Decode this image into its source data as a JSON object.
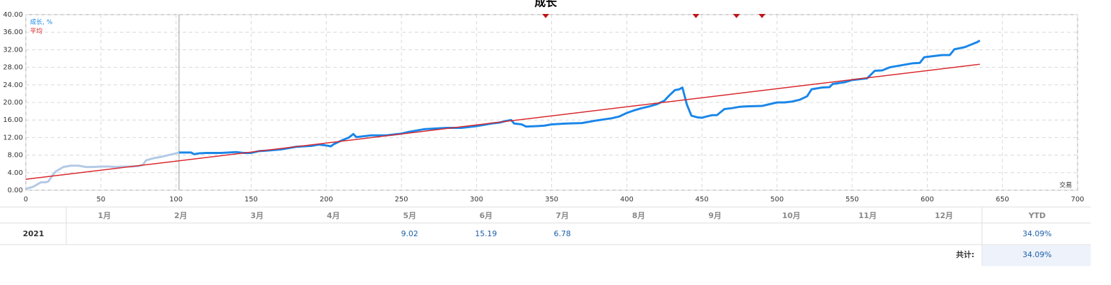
{
  "chart_data": {
    "type": "line",
    "title": "成长",
    "x_label": "交易",
    "series": [
      {
        "color": "#b3c9e6",
        "x": [
          0,
          5,
          10,
          13,
          15,
          18,
          20,
          25,
          30,
          35,
          40,
          45,
          50,
          55,
          60,
          65,
          70,
          75,
          78,
          80,
          85,
          90,
          95,
          100,
          102
        ],
        "values": [
          0.3,
          0.8,
          1.8,
          1.8,
          2.0,
          3.5,
          4.3,
          5.3,
          5.6,
          5.6,
          5.3,
          5.3,
          5.4,
          5.4,
          5.3,
          5.4,
          5.4,
          5.5,
          5.8,
          6.8,
          7.3,
          7.6,
          8.0,
          8.4,
          8.6
        ]
      },
      {
        "name": "成长, %",
        "color": "#1a86e8",
        "x": [
          102,
          110,
          112,
          115,
          120,
          130,
          135,
          140,
          145,
          150,
          155,
          160,
          170,
          175,
          180,
          190,
          195,
          200,
          203,
          205,
          210,
          215,
          218,
          220,
          225,
          230,
          240,
          250,
          255,
          260,
          265,
          270,
          280,
          290,
          300,
          310,
          315,
          320,
          323,
          325,
          330,
          333,
          340,
          345,
          350,
          360,
          370,
          375,
          380,
          390,
          395,
          400,
          405,
          410,
          415,
          420,
          425,
          428,
          432,
          435,
          437,
          440,
          443,
          447,
          450,
          453,
          457,
          460,
          465,
          470,
          475,
          480,
          490,
          495,
          500,
          505,
          510,
          515,
          520,
          523,
          530,
          535,
          537,
          545,
          550,
          555,
          560,
          565,
          570,
          575,
          580,
          590,
          595,
          598,
          605,
          610,
          615,
          618,
          625,
          630,
          633,
          635
        ],
        "values": [
          8.6,
          8.6,
          8.2,
          8.4,
          8.5,
          8.5,
          8.6,
          8.7,
          8.5,
          8.5,
          8.9,
          9.0,
          9.3,
          9.6,
          9.9,
          10.1,
          10.4,
          10.2,
          10.0,
          10.5,
          11.3,
          12.0,
          12.8,
          12.1,
          12.3,
          12.5,
          12.5,
          12.9,
          13.3,
          13.6,
          13.9,
          14.0,
          14.2,
          14.2,
          14.6,
          15.2,
          15.4,
          15.8,
          16.0,
          15.2,
          15.0,
          14.5,
          14.6,
          14.7,
          15.0,
          15.2,
          15.3,
          15.6,
          15.9,
          16.4,
          16.8,
          17.6,
          18.2,
          18.7,
          19.1,
          19.6,
          20.4,
          21.5,
          22.8,
          23.0,
          23.4,
          19.5,
          17.0,
          16.6,
          16.5,
          16.8,
          17.1,
          17.1,
          18.5,
          18.7,
          19.0,
          19.1,
          19.2,
          19.6,
          20.0,
          20.0,
          20.2,
          20.6,
          21.4,
          23.0,
          23.4,
          23.5,
          24.2,
          24.6,
          25.1,
          25.3,
          25.5,
          27.2,
          27.3,
          28.0,
          28.3,
          28.9,
          29.0,
          30.3,
          30.6,
          30.8,
          30.8,
          32.1,
          32.6,
          33.3,
          33.7,
          34.1
        ]
      },
      {
        "name": "平均",
        "color": "#d9262b",
        "x": [
          0,
          635
        ],
        "values": [
          2.5,
          28.7
        ]
      }
    ],
    "markers_x": [
      346,
      446,
      473,
      490
    ],
    "marker_color": "#c0161b",
    "xlim": [
      0,
      700
    ],
    "xticks": [
      0,
      50,
      100,
      150,
      200,
      250,
      300,
      350,
      400,
      450,
      500,
      550,
      600,
      650,
      700
    ],
    "ylim": [
      0,
      40
    ],
    "yticks": [
      {
        "value": 0,
        "label": "0.00"
      },
      {
        "value": 4,
        "label": "4.00"
      },
      {
        "value": 8,
        "label": "8.00"
      },
      {
        "value": 12,
        "label": "12.00"
      },
      {
        "value": 16,
        "label": "16.00"
      },
      {
        "value": 20,
        "label": "20.00"
      },
      {
        "value": 24,
        "label": "24.00"
      },
      {
        "value": 28,
        "label": "28.00"
      },
      {
        "value": 32,
        "label": "32.00"
      },
      {
        "value": 36,
        "label": "36.00"
      },
      {
        "value": 40,
        "label": "40.00"
      }
    ],
    "grid": true
  },
  "table": {
    "months": [
      "1月",
      "2月",
      "3月",
      "4月",
      "5月",
      "6月",
      "7月",
      "8月",
      "9月",
      "10月",
      "11月",
      "12月"
    ],
    "ytd_header": "YTD",
    "rows": [
      {
        "year": "2021",
        "values": [
          null,
          null,
          null,
          null,
          9.02,
          15.19,
          6.78,
          null,
          null,
          null,
          null,
          null
        ],
        "ytd": "34.09%"
      }
    ],
    "total_label": "共计:",
    "total": "34.09%"
  }
}
